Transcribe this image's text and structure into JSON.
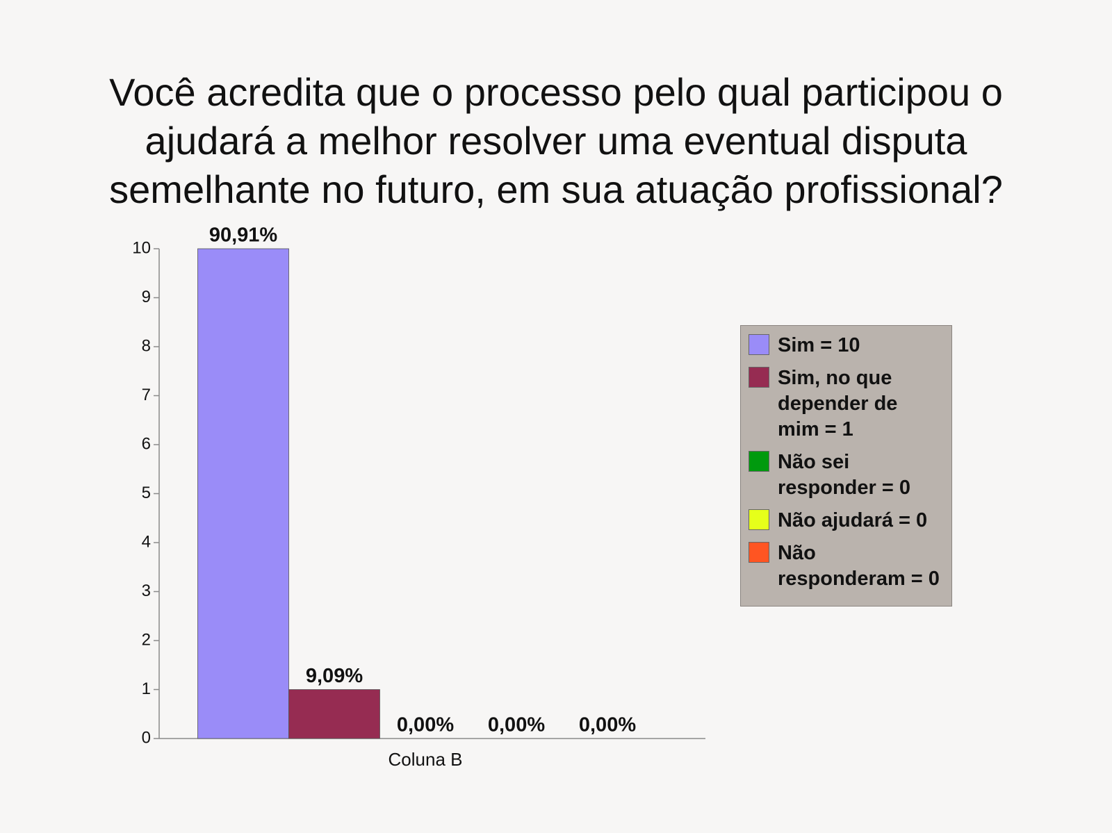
{
  "chart_data": {
    "type": "bar",
    "title": "Você acredita que o processo pelo qual participou o ajudará a melhor resolver uma eventual disputa semelhante no futuro, em sua atuação profissional?",
    "categories": [
      "Coluna B"
    ],
    "series": [
      {
        "name": "Sim = 10",
        "color": "#9a8cf8",
        "values": [
          10
        ],
        "value_labels": [
          "90,91%"
        ]
      },
      {
        "name": "Sim, no que depender de mim = 1",
        "color": "#962c52",
        "values": [
          1
        ],
        "value_labels": [
          "9,09%"
        ]
      },
      {
        "name": "Não sei responder = 0",
        "color": "#009a0e",
        "values": [
          0
        ],
        "value_labels": [
          "0,00%"
        ]
      },
      {
        "name": "Não ajudará = 0",
        "color": "#e6ff1a",
        "values": [
          0
        ],
        "value_labels": [
          "0,00%"
        ]
      },
      {
        "name": "Não responderam = 0",
        "color": "#ff5522",
        "values": [
          0
        ],
        "value_labels": [
          "0,00%"
        ]
      }
    ],
    "ylim": [
      0,
      10
    ],
    "yticks": [
      0,
      1,
      2,
      3,
      4,
      5,
      6,
      7,
      8,
      9,
      10
    ],
    "legend": "right"
  }
}
